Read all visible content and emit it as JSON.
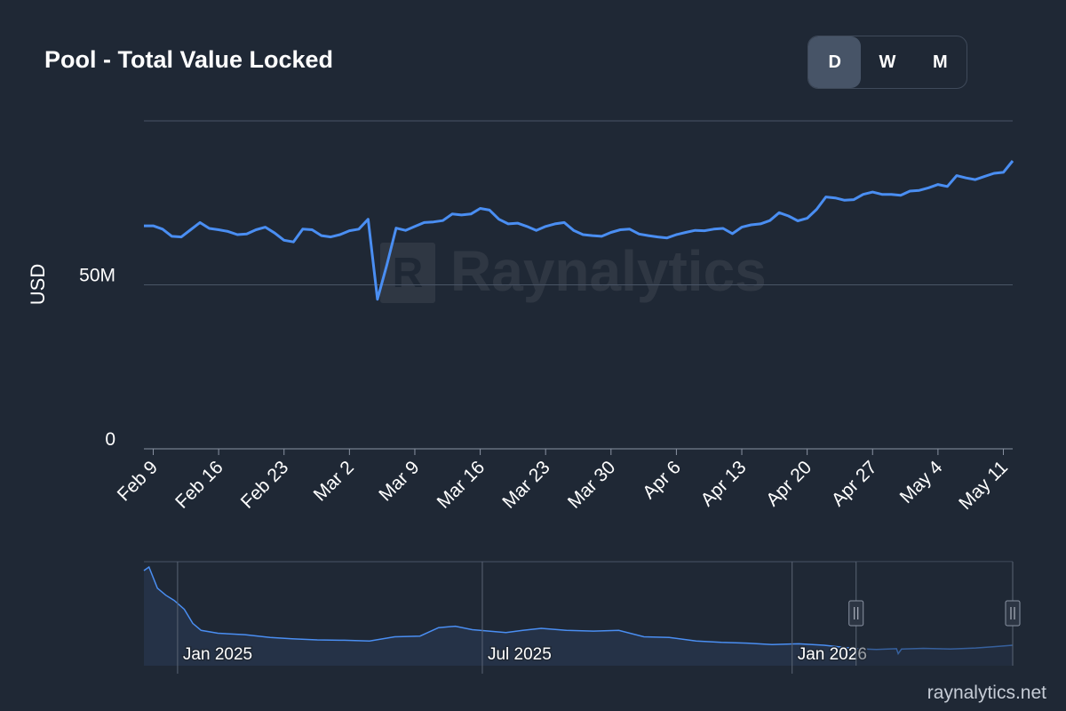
{
  "header": {
    "title": "Pool - Total Value Locked"
  },
  "range_toggle": {
    "options": [
      {
        "label": "D",
        "active": true
      },
      {
        "label": "W",
        "active": false
      },
      {
        "label": "M",
        "active": false
      }
    ]
  },
  "footer": {
    "site": "raynalytics.net"
  },
  "watermark": {
    "text": "Raynalytics"
  },
  "chart_data": {
    "type": "line",
    "title": "Pool - Total Value Locked",
    "ylabel": "USD",
    "xlabel": "",
    "ylim": [
      0,
      100
    ],
    "yunit": "M",
    "ytick_labels": [
      {
        "value": 0,
        "label": "0"
      },
      {
        "value": 50,
        "label": "50M"
      },
      {
        "value": 100,
        "label": ""
      }
    ],
    "grid": true,
    "x_start": "2026-02-08",
    "x_end": "2026-05-12",
    "xtick_labels": [
      {
        "date": "2026-02-09",
        "label": "Feb 9"
      },
      {
        "date": "2026-02-16",
        "label": "Feb 16"
      },
      {
        "date": "2026-02-23",
        "label": "Feb 23"
      },
      {
        "date": "2026-03-02",
        "label": "Mar 2"
      },
      {
        "date": "2026-03-09",
        "label": "Mar 9"
      },
      {
        "date": "2026-03-16",
        "label": "Mar 16"
      },
      {
        "date": "2026-03-23",
        "label": "Mar 23"
      },
      {
        "date": "2026-03-30",
        "label": "Mar 30"
      },
      {
        "date": "2026-04-06",
        "label": "Apr 6"
      },
      {
        "date": "2026-04-13",
        "label": "Apr 13"
      },
      {
        "date": "2026-04-20",
        "label": "Apr 20"
      },
      {
        "date": "2026-04-27",
        "label": "Apr 27"
      },
      {
        "date": "2026-05-04",
        "label": "May 4"
      },
      {
        "date": "2026-05-11",
        "label": "May 11"
      }
    ],
    "series": [
      {
        "color": "#4a8ef2",
        "points": [
          [
            "2026-02-08",
            68.0
          ],
          [
            "2026-02-09",
            68.0
          ],
          [
            "2026-02-10",
            67.0
          ],
          [
            "2026-02-11",
            64.8
          ],
          [
            "2026-02-12",
            64.6
          ],
          [
            "2026-02-13",
            66.8
          ],
          [
            "2026-02-14",
            69.0
          ],
          [
            "2026-02-15",
            67.2
          ],
          [
            "2026-02-16",
            66.8
          ],
          [
            "2026-02-17",
            66.3
          ],
          [
            "2026-02-18",
            65.3
          ],
          [
            "2026-02-19",
            65.5
          ],
          [
            "2026-02-20",
            66.8
          ],
          [
            "2026-02-21",
            67.6
          ],
          [
            "2026-02-22",
            65.8
          ],
          [
            "2026-02-23",
            63.6
          ],
          [
            "2026-02-24",
            63.1
          ],
          [
            "2026-02-25",
            67.0
          ],
          [
            "2026-02-26",
            66.8
          ],
          [
            "2026-02-27",
            65.0
          ],
          [
            "2026-02-28",
            64.6
          ],
          [
            "2026-03-01",
            65.3
          ],
          [
            "2026-03-02",
            66.5
          ],
          [
            "2026-03-03",
            67.0
          ],
          [
            "2026-03-04",
            70.0
          ],
          [
            "2026-03-05",
            45.6
          ],
          [
            "2026-03-06",
            56.0
          ],
          [
            "2026-03-07",
            67.3
          ],
          [
            "2026-03-08",
            66.6
          ],
          [
            "2026-03-09",
            67.8
          ],
          [
            "2026-03-10",
            69.0
          ],
          [
            "2026-03-11",
            69.2
          ],
          [
            "2026-03-12",
            69.6
          ],
          [
            "2026-03-13",
            71.6
          ],
          [
            "2026-03-14",
            71.3
          ],
          [
            "2026-03-15",
            71.6
          ],
          [
            "2026-03-16",
            73.3
          ],
          [
            "2026-03-17",
            72.8
          ],
          [
            "2026-03-18",
            70.0
          ],
          [
            "2026-03-19",
            68.6
          ],
          [
            "2026-03-20",
            68.8
          ],
          [
            "2026-03-21",
            67.8
          ],
          [
            "2026-03-22",
            66.6
          ],
          [
            "2026-03-23",
            67.8
          ],
          [
            "2026-03-24",
            68.6
          ],
          [
            "2026-03-25",
            69.0
          ],
          [
            "2026-03-26",
            66.6
          ],
          [
            "2026-03-27",
            65.3
          ],
          [
            "2026-03-28",
            65.0
          ],
          [
            "2026-03-29",
            64.8
          ],
          [
            "2026-03-30",
            66.0
          ],
          [
            "2026-03-31",
            66.8
          ],
          [
            "2026-04-01",
            67.0
          ],
          [
            "2026-04-02",
            65.5
          ],
          [
            "2026-04-03",
            65.0
          ],
          [
            "2026-04-04",
            64.6
          ],
          [
            "2026-04-05",
            64.3
          ],
          [
            "2026-04-06",
            65.3
          ],
          [
            "2026-04-07",
            66.0
          ],
          [
            "2026-04-08",
            66.6
          ],
          [
            "2026-04-09",
            66.5
          ],
          [
            "2026-04-10",
            67.0
          ],
          [
            "2026-04-11",
            67.2
          ],
          [
            "2026-04-12",
            65.6
          ],
          [
            "2026-04-13",
            67.6
          ],
          [
            "2026-04-14",
            68.3
          ],
          [
            "2026-04-15",
            68.6
          ],
          [
            "2026-04-16",
            69.6
          ],
          [
            "2026-04-17",
            72.0
          ],
          [
            "2026-04-18",
            71.0
          ],
          [
            "2026-04-19",
            69.5
          ],
          [
            "2026-04-20",
            70.3
          ],
          [
            "2026-04-21",
            73.0
          ],
          [
            "2026-04-22",
            76.8
          ],
          [
            "2026-04-23",
            76.5
          ],
          [
            "2026-04-24",
            75.8
          ],
          [
            "2026-04-25",
            76.0
          ],
          [
            "2026-04-26",
            77.6
          ],
          [
            "2026-04-27",
            78.3
          ],
          [
            "2026-04-28",
            77.6
          ],
          [
            "2026-04-29",
            77.6
          ],
          [
            "2026-04-30",
            77.3
          ],
          [
            "2026-05-01",
            78.6
          ],
          [
            "2026-05-02",
            78.8
          ],
          [
            "2026-05-03",
            79.6
          ],
          [
            "2026-05-04",
            80.6
          ],
          [
            "2026-05-05",
            80.0
          ],
          [
            "2026-05-06",
            83.3
          ],
          [
            "2026-05-07",
            82.6
          ],
          [
            "2026-05-08",
            82.1
          ],
          [
            "2026-05-09",
            83.1
          ],
          [
            "2026-05-10",
            84.0
          ],
          [
            "2026-05-11",
            84.3
          ],
          [
            "2026-05-12",
            87.8
          ]
        ]
      }
    ],
    "navigator": {
      "x_start": "2024-12-12",
      "x_end": "2026-05-12",
      "window_start": "2026-02-08",
      "window_end": "2026-05-12",
      "xtick_labels": [
        {
          "date": "2025-01-01",
          "label": "Jan 2025"
        },
        {
          "date": "2025-07-01",
          "label": "Jul 2025"
        },
        {
          "date": "2026-01-01",
          "label": "Jan 2026"
        }
      ],
      "series": {
        "color": "#4a8ef2",
        "points": [
          [
            "2024-12-12",
            260
          ],
          [
            "2024-12-15",
            270
          ],
          [
            "2024-12-20",
            210
          ],
          [
            "2024-12-25",
            190
          ],
          [
            "2024-12-30",
            175
          ],
          [
            "2025-01-05",
            150
          ],
          [
            "2025-01-10",
            110
          ],
          [
            "2025-01-15",
            90
          ],
          [
            "2025-01-25",
            82
          ],
          [
            "2025-02-10",
            78
          ],
          [
            "2025-02-25",
            70
          ],
          [
            "2025-03-10",
            66
          ],
          [
            "2025-03-25",
            63
          ],
          [
            "2025-04-10",
            62
          ],
          [
            "2025-04-25",
            60
          ],
          [
            "2025-05-10",
            72
          ],
          [
            "2025-05-25",
            74
          ],
          [
            "2025-06-05",
            98
          ],
          [
            "2025-06-15",
            102
          ],
          [
            "2025-06-25",
            92
          ],
          [
            "2025-07-05",
            88
          ],
          [
            "2025-07-15",
            84
          ],
          [
            "2025-07-25",
            90
          ],
          [
            "2025-08-05",
            96
          ],
          [
            "2025-08-20",
            90
          ],
          [
            "2025-09-05",
            88
          ],
          [
            "2025-09-20",
            90
          ],
          [
            "2025-10-05",
            72
          ],
          [
            "2025-10-20",
            70
          ],
          [
            "2025-11-05",
            60
          ],
          [
            "2025-11-20",
            56
          ],
          [
            "2025-12-05",
            54
          ],
          [
            "2025-12-20",
            50
          ],
          [
            "2026-01-05",
            52
          ],
          [
            "2026-01-20",
            48
          ],
          [
            "2026-02-08",
            38
          ],
          [
            "2026-02-20",
            36
          ],
          [
            "2026-03-04",
            38
          ],
          [
            "2026-03-05",
            24
          ],
          [
            "2026-03-07",
            37
          ],
          [
            "2026-03-20",
            39
          ],
          [
            "2026-04-05",
            37
          ],
          [
            "2026-04-20",
            40
          ],
          [
            "2026-05-01",
            44
          ],
          [
            "2026-05-12",
            48
          ]
        ]
      }
    }
  }
}
